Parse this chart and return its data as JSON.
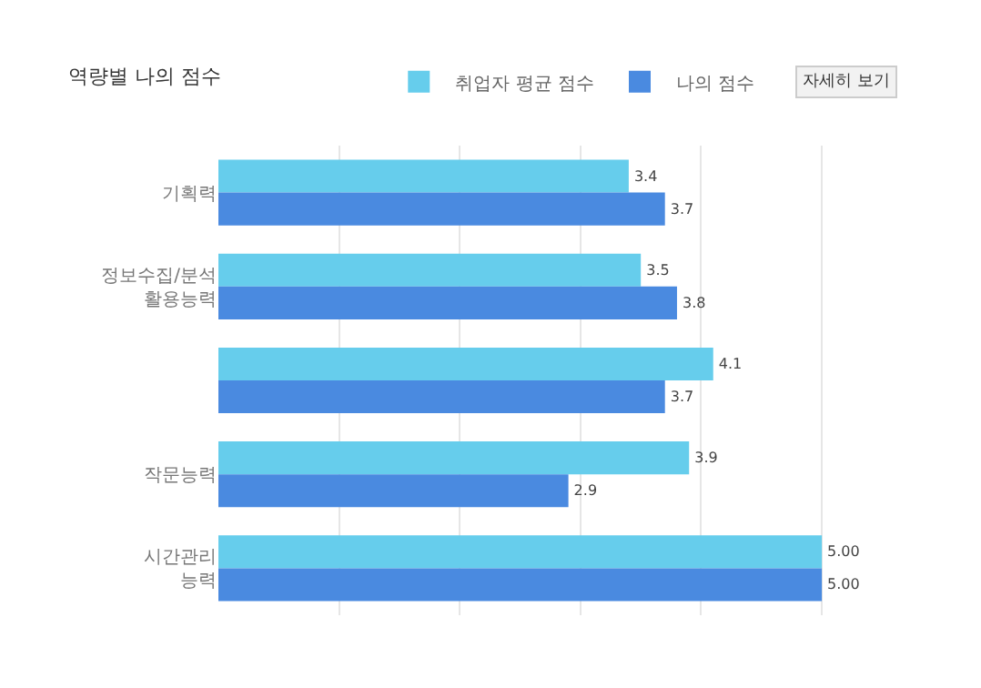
{
  "chart_data": {
    "type": "bar",
    "orientation": "horizontal",
    "title": "역량별 나의 점수",
    "categories": [
      "기획력",
      "정보수집/분석\n활용능력",
      null,
      "작문능력",
      "시간관리\n능력"
    ],
    "series": [
      {
        "name": "취업자 평균 점수",
        "color": "#66cdec",
        "values": [
          3.4,
          3.5,
          4.1,
          3.9,
          5.0
        ],
        "value_labels": [
          "3.4",
          "3.5",
          "4.1",
          "3.9",
          "5.00"
        ]
      },
      {
        "name": "나의 점수",
        "color": "#4a8ae0",
        "values": [
          3.7,
          3.8,
          3.7,
          2.9,
          5.0
        ],
        "value_labels": [
          "3.7",
          "3.8",
          "3.7",
          "2.9",
          "5.00"
        ]
      }
    ],
    "tick_labels": "y",
    "grid": "x",
    "legend": "top right",
    "annotations": [
      "자세히 보기"
    ]
  }
}
